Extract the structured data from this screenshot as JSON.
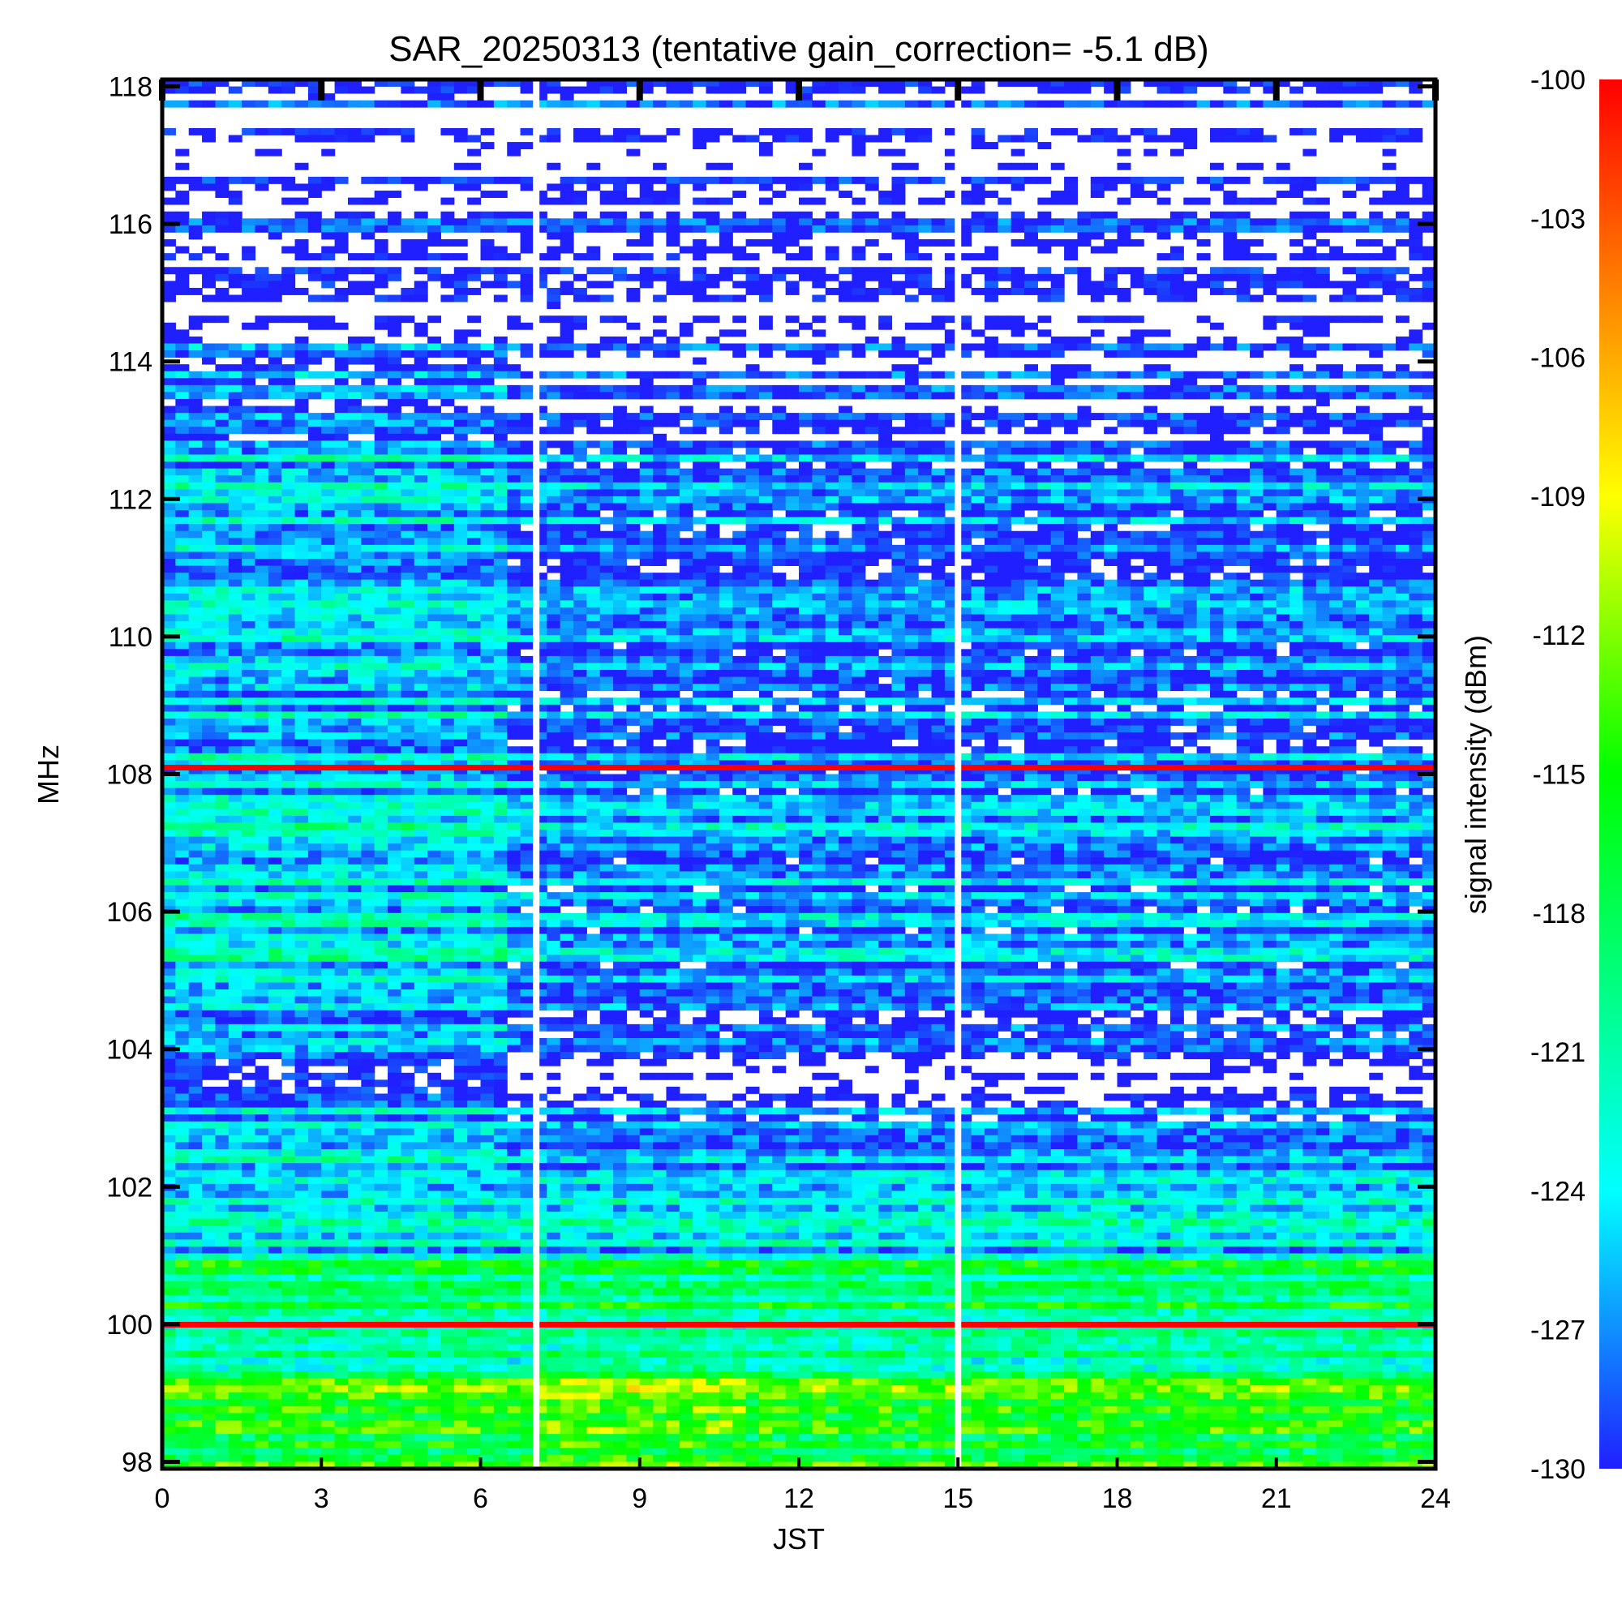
{
  "chart_data": {
    "type": "heatmap",
    "title": "SAR_20250313 (tentative gain_correction= -5.1 dB)",
    "xlabel": "JST",
    "ylabel": "MHz",
    "xlim": [
      0,
      24
    ],
    "ylim": [
      97.9,
      118.1
    ],
    "x_ticks": [
      "0",
      "3",
      "6",
      "9",
      "12",
      "15",
      "18",
      "21",
      "24"
    ],
    "x_tick_values": [
      0,
      3,
      6,
      9,
      12,
      15,
      18,
      21,
      24
    ],
    "y_ticks": [
      "98",
      "100",
      "102",
      "104",
      "106",
      "108",
      "110",
      "112",
      "114",
      "116",
      "118"
    ],
    "y_tick_values": [
      98,
      100,
      102,
      104,
      106,
      108,
      110,
      112,
      114,
      116,
      118
    ],
    "colorbar": {
      "label": "signal intensity (dBm)",
      "range": [
        -130,
        -100
      ],
      "ticks": [
        "-100",
        "-103",
        "-106",
        "-109",
        "-112",
        "-115",
        "-118",
        "-121",
        "-124",
        "-127",
        "-130"
      ],
      "tick_values": [
        -100,
        -103,
        -106,
        -109,
        -112,
        -115,
        -118,
        -121,
        -124,
        -127,
        -130
      ],
      "colors": [
        "#1f1fff",
        "#00ffff",
        "#00ff00",
        "#ffff00",
        "#ff8000",
        "#ff0000"
      ]
    },
    "grid": false,
    "gaps_jst": [
      7.05,
      15.0
    ],
    "strong_bands_mhz": [
      {
        "freq": 100.0,
        "dbm": -100
      },
      {
        "freq": 108.1,
        "dbm": -100
      }
    ],
    "bands": [
      {
        "from": 97.9,
        "to": 99.3,
        "base_dbm": -116
      },
      {
        "from": 99.3,
        "to": 100.9,
        "base_dbm": -119
      },
      {
        "from": 100.9,
        "to": 102.2,
        "base_dbm": -124
      },
      {
        "from": 102.2,
        "to": 103.2,
        "base_dbm": -128
      },
      {
        "from": 103.2,
        "to": 104.6,
        "base_dbm": -131
      },
      {
        "from": 104.6,
        "to": 107.9,
        "base_dbm": -127
      },
      {
        "from": 108.2,
        "to": 112.6,
        "base_dbm": -128
      },
      {
        "from": 112.6,
        "to": 118.1,
        "base_dbm": -132
      }
    ]
  }
}
